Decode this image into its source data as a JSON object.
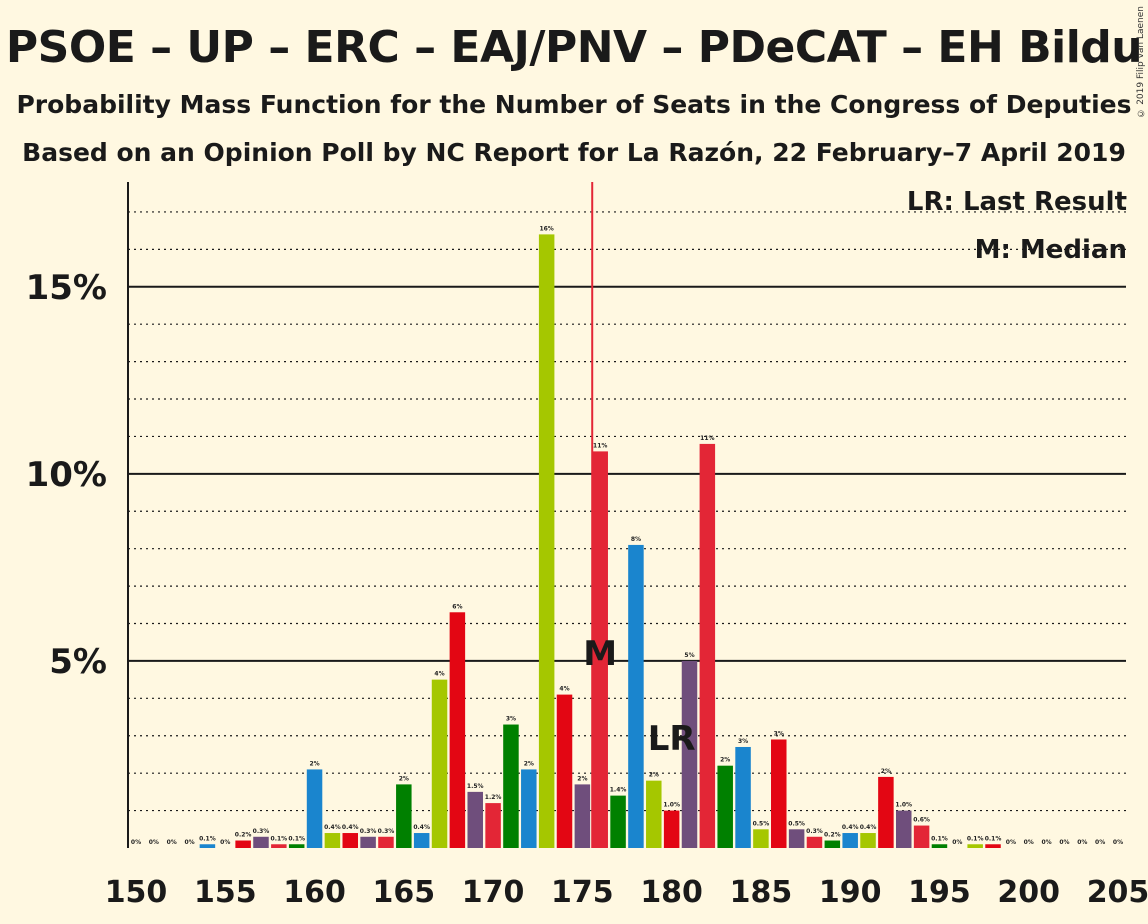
{
  "title": "PSOE – UP – ERC – EAJ/PNV – PDeCAT – EH Bildu",
  "subtitle1": "Probability Mass Function for the Number of Seats in the Congress of Deputies",
  "subtitle2": "Based on an Opinion Poll by NC Report for La Razón, 22 February–7 April 2019",
  "copyright": "© 2019 Filip van Laenen",
  "legend": {
    "lr": "LR: Last Result",
    "m": "M: Median"
  },
  "markers": {
    "lr_label": "LR",
    "median_label": "M",
    "last_result_seat": 180,
    "median_seat": 176
  },
  "colors": {
    "PSOE": "#E30613",
    "Podemos": "#6F4E7C",
    "ERC": "#F1A700",
    "PNV": "#008000",
    "PDeCAT": "#1A85CE",
    "Bildu": "#A5C700",
    "Crimson": "#E32636",
    "background": "#FFF8E1",
    "median_line": "#E32636"
  },
  "chart_data": {
    "type": "bar",
    "xlabel": "",
    "ylabel": "",
    "ylim": [
      0,
      17.8
    ],
    "xlim": [
      150,
      205
    ],
    "x_ticks": [
      "150",
      "155",
      "160",
      "165",
      "170",
      "175",
      "180",
      "185",
      "190",
      "195",
      "200",
      "205"
    ],
    "y_ticks": [
      {
        "value": 5,
        "label": "5%"
      },
      {
        "value": 10,
        "label": "10%"
      },
      {
        "value": 15,
        "label": "15%"
      }
    ],
    "grid": "dotted every 1%, solid every 5%",
    "legend_position": "top-right",
    "bars": [
      {
        "seat": 150,
        "value": 0,
        "label": "0%",
        "color": "#008000"
      },
      {
        "seat": 151,
        "value": 0,
        "label": "0%",
        "color": "#1A85CE"
      },
      {
        "seat": 152,
        "value": 0,
        "label": "0%",
        "color": "#A5C700"
      },
      {
        "seat": 153,
        "value": 0,
        "label": "0%",
        "color": "#E32636"
      },
      {
        "seat": 154,
        "value": 0.1,
        "label": "0.1%",
        "color": "#1A85CE"
      },
      {
        "seat": 155,
        "value": 0,
        "label": "0%",
        "color": "#A5C700"
      },
      {
        "seat": 156,
        "value": 0.2,
        "label": "0.2%",
        "color": "#E30613"
      },
      {
        "seat": 157,
        "value": 0.3,
        "label": "0.3%",
        "color": "#6F4E7C"
      },
      {
        "seat": 158,
        "value": 0.1,
        "label": "0.1%",
        "color": "#E32636"
      },
      {
        "seat": 159,
        "value": 0.1,
        "label": "0.1%",
        "color": "#008000"
      },
      {
        "seat": 160,
        "value": 2.1,
        "label": "2%",
        "color": "#1A85CE"
      },
      {
        "seat": 161,
        "value": 0.4,
        "label": "0.4%",
        "color": "#A5C700"
      },
      {
        "seat": 162,
        "value": 0.4,
        "label": "0.4%",
        "color": "#E30613"
      },
      {
        "seat": 163,
        "value": 0.3,
        "label": "0.3%",
        "color": "#6F4E7C"
      },
      {
        "seat": 164,
        "value": 0.3,
        "label": "0.3%",
        "color": "#E32636"
      },
      {
        "seat": 165,
        "value": 1.7,
        "label": "2%",
        "color": "#008000"
      },
      {
        "seat": 166,
        "value": 0.4,
        "label": "0.4%",
        "color": "#1A85CE"
      },
      {
        "seat": 167,
        "value": 4.5,
        "label": "4%",
        "color": "#A5C700"
      },
      {
        "seat": 168,
        "value": 6.3,
        "label": "6%",
        "color": "#E30613"
      },
      {
        "seat": 169,
        "value": 1.5,
        "label": "1.5%",
        "color": "#6F4E7C"
      },
      {
        "seat": 170,
        "value": 1.2,
        "label": "1.2%",
        "color": "#E32636"
      },
      {
        "seat": 171,
        "value": 3.3,
        "label": "3%",
        "color": "#008000"
      },
      {
        "seat": 172,
        "value": 2.1,
        "label": "2%",
        "color": "#1A85CE"
      },
      {
        "seat": 173,
        "value": 16.4,
        "label": "16%",
        "color": "#A5C700"
      },
      {
        "seat": 174,
        "value": 4.1,
        "label": "4%",
        "color": "#E30613"
      },
      {
        "seat": 175,
        "value": 1.7,
        "label": "2%",
        "color": "#6F4E7C"
      },
      {
        "seat": 176,
        "value": 10.6,
        "label": "11%",
        "color": "#E32636"
      },
      {
        "seat": 177,
        "value": 1.4,
        "label": "1.4%",
        "color": "#008000"
      },
      {
        "seat": 178,
        "value": 8.1,
        "label": "8%",
        "color": "#1A85CE"
      },
      {
        "seat": 179,
        "value": 1.8,
        "label": "2%",
        "color": "#A5C700"
      },
      {
        "seat": 180,
        "value": 1.0,
        "label": "1.0%",
        "color": "#E30613"
      },
      {
        "seat": 181,
        "value": 5.0,
        "label": "5%",
        "color": "#6F4E7C"
      },
      {
        "seat": 182,
        "value": 10.8,
        "label": "11%",
        "color": "#E32636"
      },
      {
        "seat": 183,
        "value": 2.2,
        "label": "2%",
        "color": "#008000"
      },
      {
        "seat": 184,
        "value": 2.7,
        "label": "3%",
        "color": "#1A85CE"
      },
      {
        "seat": 185,
        "value": 0.5,
        "label": "0.5%",
        "color": "#A5C700"
      },
      {
        "seat": 186,
        "value": 2.9,
        "label": "3%",
        "color": "#E30613"
      },
      {
        "seat": 187,
        "value": 0.5,
        "label": "0.5%",
        "color": "#6F4E7C"
      },
      {
        "seat": 188,
        "value": 0.3,
        "label": "0.3%",
        "color": "#E32636"
      },
      {
        "seat": 189,
        "value": 0.2,
        "label": "0.2%",
        "color": "#008000"
      },
      {
        "seat": 190,
        "value": 0.4,
        "label": "0.4%",
        "color": "#1A85CE"
      },
      {
        "seat": 191,
        "value": 0.4,
        "label": "0.4%",
        "color": "#A5C700"
      },
      {
        "seat": 192,
        "value": 1.9,
        "label": "2%",
        "color": "#E30613"
      },
      {
        "seat": 193,
        "value": 1.0,
        "label": "1.0%",
        "color": "#6F4E7C"
      },
      {
        "seat": 194,
        "value": 0.6,
        "label": "0.6%",
        "color": "#E32636"
      },
      {
        "seat": 195,
        "value": 0.1,
        "label": "0.1%",
        "color": "#008000"
      },
      {
        "seat": 196,
        "value": 0,
        "label": "0%",
        "color": "#1A85CE"
      },
      {
        "seat": 197,
        "value": 0.1,
        "label": "0.1%",
        "color": "#A5C700"
      },
      {
        "seat": 198,
        "value": 0.1,
        "label": "0.1%",
        "color": "#E30613"
      },
      {
        "seat": 199,
        "value": 0,
        "label": "0%",
        "color": "#6F4E7C"
      },
      {
        "seat": 200,
        "value": 0,
        "label": "0%",
        "color": "#E32636"
      },
      {
        "seat": 201,
        "value": 0,
        "label": "0%",
        "color": "#008000"
      },
      {
        "seat": 202,
        "value": 0,
        "label": "0%",
        "color": "#1A85CE"
      },
      {
        "seat": 203,
        "value": 0,
        "label": "0%",
        "color": "#A5C700"
      },
      {
        "seat": 204,
        "value": 0,
        "label": "0%",
        "color": "#E30613"
      },
      {
        "seat": 205,
        "value": 0,
        "label": "0%",
        "color": "#6F4E7C"
      }
    ]
  }
}
